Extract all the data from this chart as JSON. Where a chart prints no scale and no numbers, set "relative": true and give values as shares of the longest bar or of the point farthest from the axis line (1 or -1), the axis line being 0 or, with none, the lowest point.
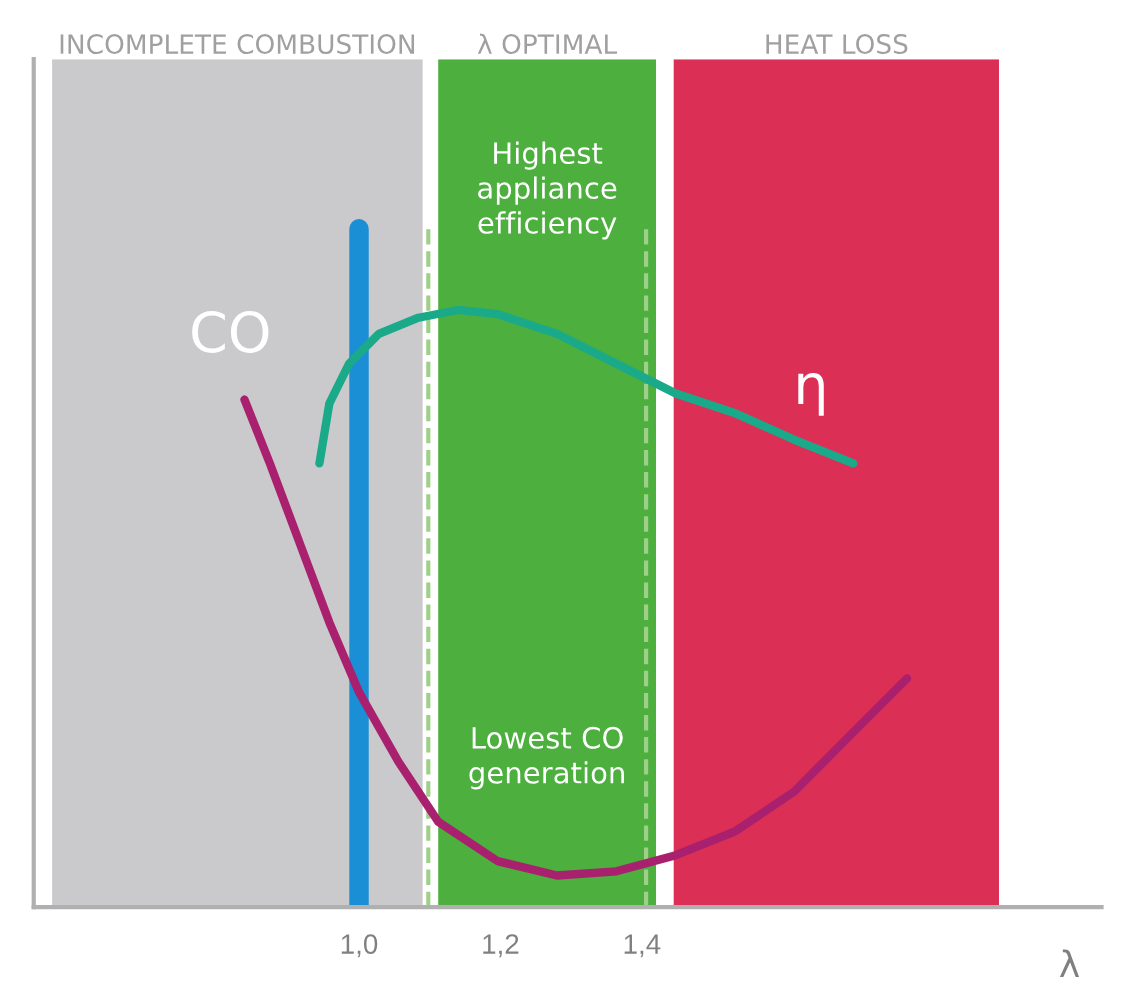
{
  "chart_data": {
    "type": "line",
    "relative": true,
    "xlabel": "λ",
    "xlim": [
      0.54,
      2.05
    ],
    "xticks": [
      {
        "value": 1.0,
        "label": "1,0"
      },
      {
        "value": 1.2,
        "label": "1,2"
      },
      {
        "value": 1.4,
        "label": "1,4"
      }
    ],
    "series": [
      {
        "name": "CO",
        "color": "#a8206e",
        "x": [
          0.838,
          0.874,
          0.916,
          0.958,
          1.0,
          1.056,
          1.112,
          1.196,
          1.28,
          1.364,
          1.448,
          1.532,
          1.615,
          1.699,
          1.775
        ],
        "values": [
          0.85,
          0.743,
          0.61,
          0.477,
          0.36,
          0.243,
          0.143,
          0.077,
          0.053,
          0.06,
          0.087,
          0.127,
          0.193,
          0.293,
          0.383
        ]
      },
      {
        "name": "η",
        "color": "#1aaa8a",
        "x": [
          0.944,
          0.958,
          0.986,
          1.028,
          1.084,
          1.14,
          1.196,
          1.28,
          1.364,
          1.448,
          1.532,
          1.615,
          1.699
        ],
        "values": [
          0.743,
          0.843,
          0.91,
          0.96,
          0.987,
          1.0,
          0.993,
          0.96,
          0.91,
          0.86,
          0.827,
          0.783,
          0.743
        ]
      }
    ],
    "bands": [
      {
        "axis": "x",
        "from": 0.566,
        "to": 1.09,
        "label": "INCOMPLETE COMBUSTION",
        "color": "#cacacc"
      },
      {
        "axis": "x",
        "from": 1.112,
        "to": 1.42,
        "label": "λ OPTIMAL",
        "color": "#4caf3e"
      },
      {
        "axis": "x",
        "from": 1.445,
        "to": 1.905,
        "label": "HEAT LOSS",
        "color": "#dc2f55"
      }
    ],
    "ref_lines": [
      {
        "axis": "x",
        "value": 1.0,
        "color": "#1a8fd6",
        "line_style": "solid"
      },
      {
        "axis": "x",
        "value": 1.098,
        "color": "#9fd08a",
        "line_style": "dashed"
      },
      {
        "axis": "x",
        "value": 1.406,
        "color": "#9fd08a",
        "line_style": "dashed"
      }
    ],
    "annotations": [
      "Highest appliance efficiency",
      "Lowest CO generation"
    ],
    "grid": false,
    "legend": false,
    "marker": "none",
    "line_style": "solid"
  }
}
